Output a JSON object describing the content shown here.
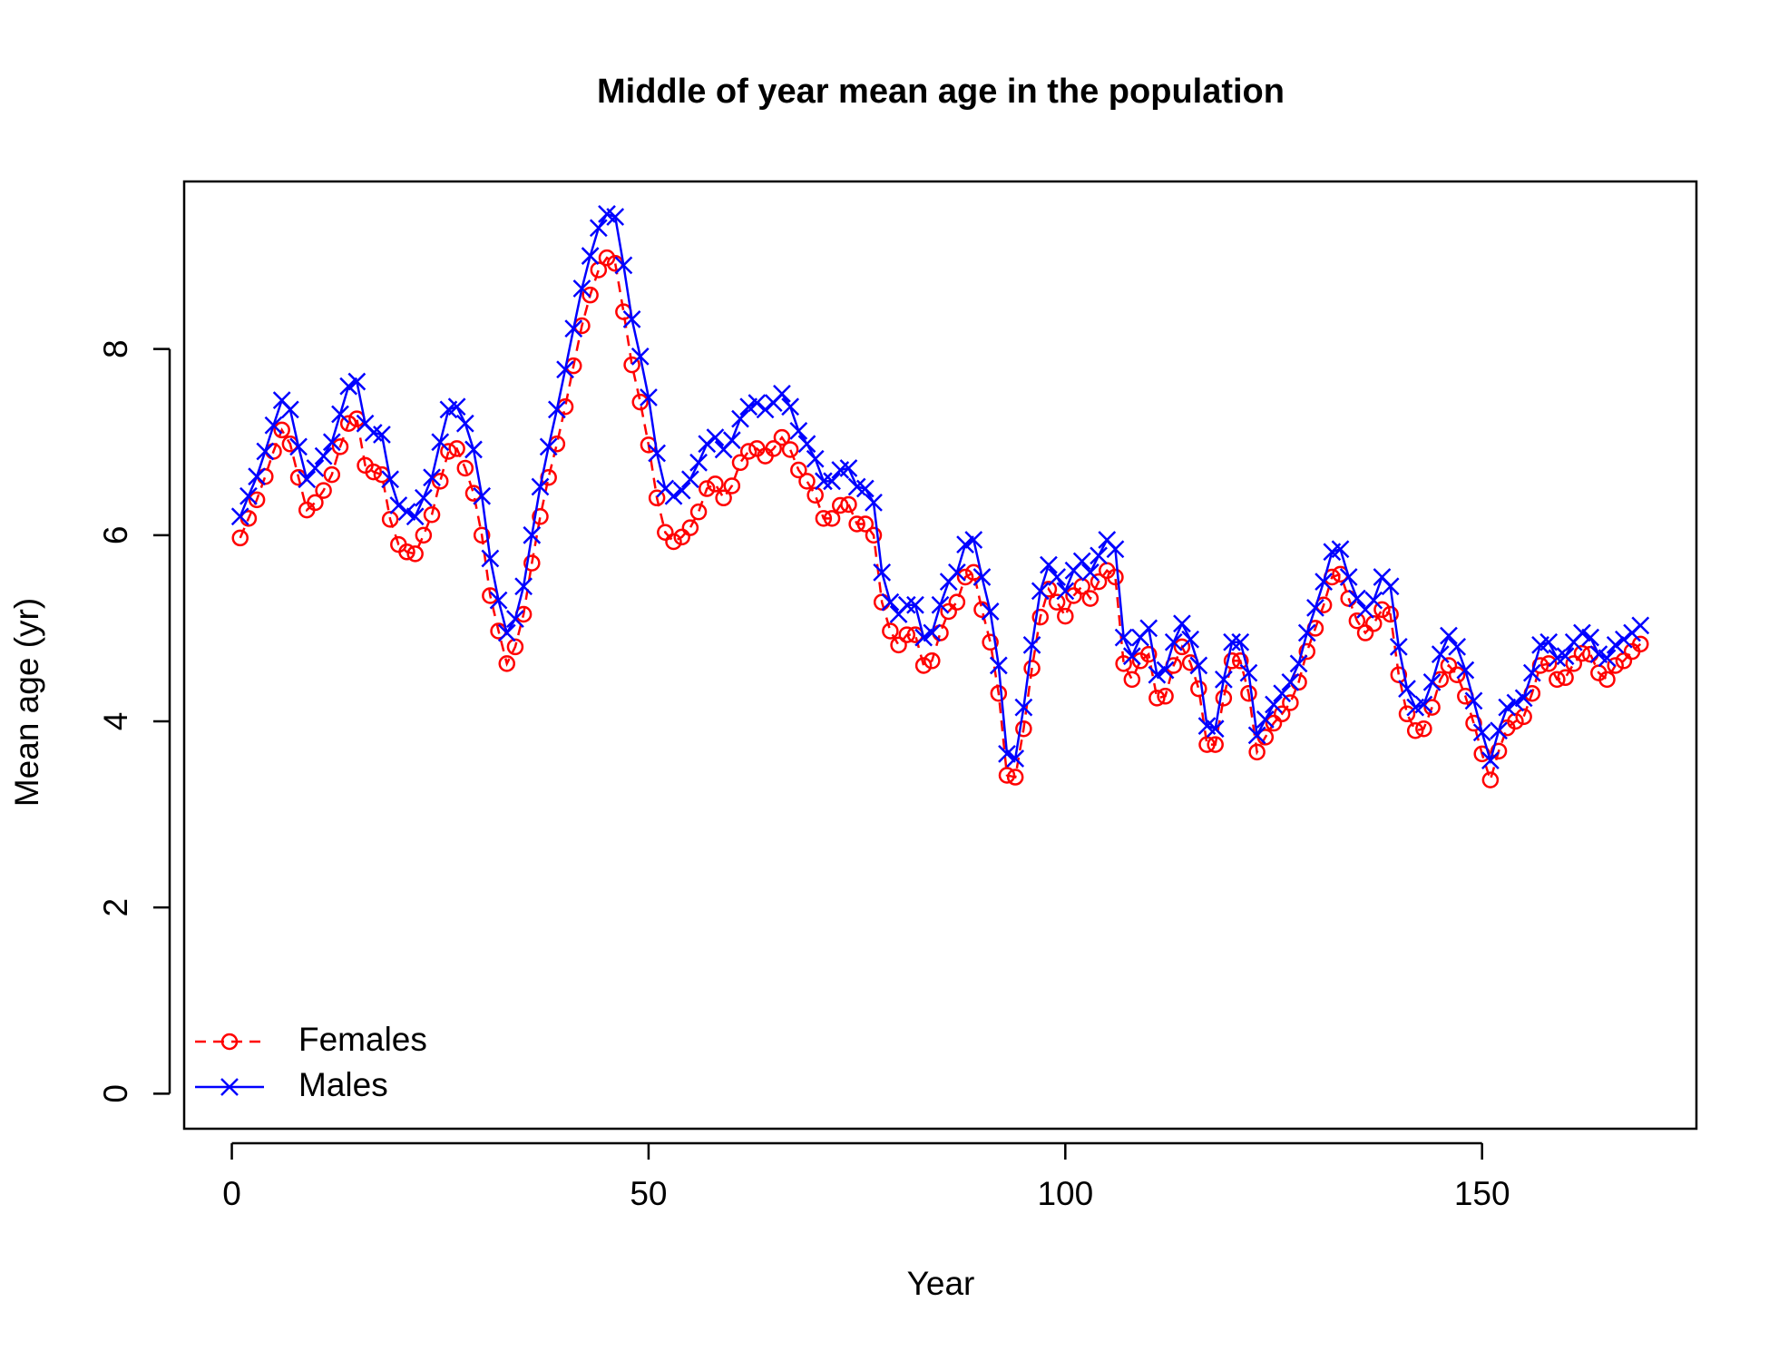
{
  "chart_data": {
    "type": "line",
    "title": "Middle of year mean age in the population",
    "xlabel": "Year",
    "ylabel": "Mean age (yr)",
    "x": [
      1,
      2,
      3,
      4,
      5,
      6,
      7,
      8,
      9,
      10,
      11,
      12,
      13,
      14,
      15,
      16,
      17,
      18,
      19,
      20,
      21,
      22,
      23,
      24,
      25,
      26,
      27,
      28,
      29,
      30,
      31,
      32,
      33,
      34,
      35,
      36,
      37,
      38,
      39,
      40,
      41,
      42,
      43,
      44,
      45,
      46,
      47,
      48,
      49,
      50,
      51,
      52,
      53,
      54,
      55,
      56,
      57,
      58,
      59,
      60,
      61,
      62,
      63,
      64,
      65,
      66,
      67,
      68,
      69,
      70,
      71,
      72,
      73,
      74,
      75,
      76,
      77,
      78,
      79,
      80,
      81,
      82,
      83,
      84,
      85,
      86,
      87,
      88,
      89,
      90,
      91,
      92,
      93,
      94,
      95,
      96,
      97,
      98,
      99,
      100,
      101,
      102,
      103,
      104,
      105,
      106,
      107,
      108,
      109,
      110,
      111,
      112,
      113,
      114,
      115,
      116,
      117,
      118,
      119,
      120,
      121,
      122,
      123,
      124,
      125,
      126,
      127,
      128,
      129,
      130,
      131,
      132,
      133,
      134,
      135,
      136,
      137,
      138,
      139,
      140,
      141,
      142,
      143,
      144,
      145,
      146,
      147,
      148,
      149,
      150,
      151,
      152,
      153,
      154,
      155,
      156,
      157,
      158,
      159,
      160,
      161,
      162,
      163,
      164,
      165,
      166,
      167,
      168,
      169
    ],
    "series": [
      {
        "name": "Females",
        "color": "#ff0000",
        "marker": "circle",
        "dashed": true,
        "values": [
          5.97,
          6.18,
          6.38,
          6.63,
          6.9,
          7.13,
          6.98,
          6.62,
          6.27,
          6.35,
          6.48,
          6.65,
          6.95,
          7.2,
          7.25,
          6.75,
          6.68,
          6.65,
          6.17,
          5.9,
          5.82,
          5.8,
          6.0,
          6.22,
          6.58,
          6.9,
          6.93,
          6.72,
          6.45,
          6.0,
          5.35,
          4.97,
          4.62,
          4.8,
          5.15,
          5.7,
          6.2,
          6.62,
          6.98,
          7.38,
          7.82,
          8.25,
          8.58,
          8.85,
          8.98,
          8.92,
          8.4,
          7.83,
          7.43,
          6.97,
          6.4,
          6.03,
          5.93,
          5.98,
          6.08,
          6.25,
          6.5,
          6.55,
          6.4,
          6.53,
          6.78,
          6.9,
          6.93,
          6.85,
          6.93,
          7.05,
          6.92,
          6.7,
          6.58,
          6.43,
          6.18,
          6.18,
          6.32,
          6.33,
          6.12,
          6.12,
          6.0,
          5.28,
          4.97,
          4.82,
          4.93,
          4.93,
          4.6,
          4.65,
          4.95,
          5.18,
          5.28,
          5.55,
          5.6,
          5.2,
          4.85,
          4.3,
          3.42,
          3.4,
          3.92,
          4.57,
          5.12,
          5.42,
          5.28,
          5.13,
          5.35,
          5.45,
          5.32,
          5.5,
          5.62,
          5.55,
          4.62,
          4.45,
          4.65,
          4.72,
          4.25,
          4.27,
          4.6,
          4.8,
          4.63,
          4.35,
          3.75,
          3.75,
          4.25,
          4.65,
          4.65,
          4.3,
          3.67,
          3.83,
          3.98,
          4.08,
          4.2,
          4.42,
          4.75,
          5.0,
          5.25,
          5.55,
          5.58,
          5.32,
          5.08,
          4.95,
          5.05,
          5.2,
          5.15,
          4.5,
          4.08,
          3.9,
          3.92,
          4.15,
          4.45,
          4.6,
          4.5,
          4.27,
          3.98,
          3.65,
          3.37,
          3.68,
          3.93,
          4.0,
          4.05,
          4.3,
          4.6,
          4.62,
          4.45,
          4.47,
          4.62,
          4.73,
          4.72,
          4.52,
          4.45,
          4.6,
          4.65,
          4.75,
          4.83
        ]
      },
      {
        "name": "Males",
        "color": "#0000ff",
        "marker": "x",
        "dashed": false,
        "values": [
          6.2,
          6.42,
          6.63,
          6.9,
          7.18,
          7.45,
          7.35,
          6.95,
          6.6,
          6.72,
          6.85,
          7.0,
          7.3,
          7.6,
          7.65,
          7.2,
          7.1,
          7.08,
          6.6,
          6.32,
          6.25,
          6.2,
          6.4,
          6.62,
          7.0,
          7.35,
          7.38,
          7.2,
          6.92,
          6.42,
          5.75,
          5.3,
          4.95,
          5.1,
          5.45,
          6.0,
          6.52,
          6.95,
          7.35,
          7.78,
          8.22,
          8.65,
          9.0,
          9.3,
          9.45,
          9.42,
          8.9,
          8.32,
          7.92,
          7.48,
          6.88,
          6.5,
          6.42,
          6.48,
          6.6,
          6.78,
          6.98,
          7.05,
          6.92,
          7.02,
          7.25,
          7.38,
          7.42,
          7.35,
          7.42,
          7.52,
          7.38,
          7.12,
          6.98,
          6.82,
          6.58,
          6.58,
          6.7,
          6.72,
          6.52,
          6.5,
          6.35,
          5.6,
          5.28,
          5.15,
          5.25,
          5.25,
          4.9,
          4.95,
          5.25,
          5.5,
          5.6,
          5.9,
          5.95,
          5.55,
          5.18,
          4.6,
          3.65,
          3.6,
          4.15,
          4.82,
          5.4,
          5.68,
          5.55,
          5.4,
          5.62,
          5.72,
          5.6,
          5.78,
          5.95,
          5.85,
          4.9,
          4.7,
          4.9,
          5.0,
          4.5,
          4.55,
          4.85,
          5.05,
          4.88,
          4.6,
          3.95,
          3.92,
          4.45,
          4.85,
          4.85,
          4.52,
          3.85,
          4.02,
          4.18,
          4.3,
          4.42,
          4.62,
          4.95,
          5.22,
          5.5,
          5.82,
          5.85,
          5.55,
          5.32,
          5.2,
          5.3,
          5.55,
          5.45,
          4.8,
          4.35,
          4.15,
          4.18,
          4.42,
          4.72,
          4.92,
          4.8,
          4.55,
          4.22,
          3.88,
          3.58,
          3.9,
          4.15,
          4.2,
          4.25,
          4.52,
          4.82,
          4.85,
          4.68,
          4.7,
          4.85,
          4.95,
          4.9,
          4.72,
          4.68,
          4.82,
          4.88,
          4.95,
          5.03
        ]
      }
    ],
    "xlim": [
      -5.72,
      175.72
    ],
    "xticks": [
      0,
      50,
      100,
      150
    ],
    "ylim": [
      -0.377,
      9.8
    ],
    "yticks": [
      0,
      2,
      4,
      6,
      8
    ],
    "legend": "bottomleft"
  }
}
